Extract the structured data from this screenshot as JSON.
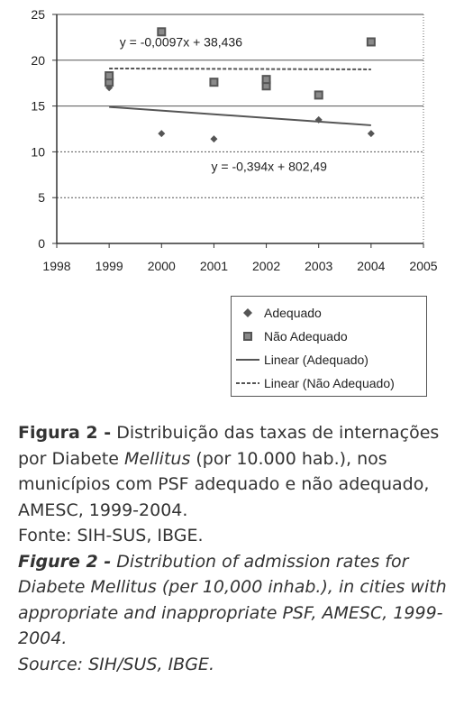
{
  "chart_data": {
    "type": "scatter",
    "xlim": [
      1998,
      2005
    ],
    "ylim": [
      0,
      25
    ],
    "x_ticks": [
      1998,
      1999,
      2000,
      2001,
      2002,
      2003,
      2004,
      2005
    ],
    "y_ticks": [
      0,
      5,
      10,
      15,
      20,
      25
    ],
    "gridlines": {
      "y": [
        5,
        10,
        15,
        20
      ],
      "style": "dotted"
    },
    "series": [
      {
        "name": "Adequado",
        "kind": "points",
        "marker": "diamond",
        "x": [
          1999,
          1999,
          2000,
          2001,
          2002,
          2002,
          2003,
          2004
        ],
        "y": [
          17,
          17.8,
          12,
          11.4,
          17.3,
          17.8,
          13.5,
          12
        ]
      },
      {
        "name": "Não Adequado",
        "kind": "points",
        "marker": "square",
        "x": [
          1999,
          1999,
          2000,
          2001,
          2002,
          2002,
          2003,
          2004
        ],
        "y": [
          17.6,
          18.3,
          23.1,
          17.6,
          17.2,
          17.9,
          16.2,
          22
        ]
      },
      {
        "name": "Linear (Adequado)",
        "kind": "trendline",
        "style": "solid",
        "x": [
          1999,
          2004
        ],
        "y": [
          14.9,
          12.9
        ]
      },
      {
        "name": "Linear (Não Adequado)",
        "kind": "trendline",
        "style": "dashed",
        "x": [
          1999,
          2004
        ],
        "y": [
          19.1,
          19.0
        ]
      }
    ],
    "annotations": [
      {
        "text": "y = -0,0097x + 38,436",
        "x": 1999.2,
        "y": 21.5
      },
      {
        "text": "y = -0,394x + 802,49",
        "x": 2000.95,
        "y": 7.9
      }
    ],
    "legend_position": "bottom-right",
    "colors": {
      "points": "#555555",
      "axis": "#333333",
      "grid": "#666666"
    }
  },
  "caption": {
    "pt_label": "Figura 2 -",
    "pt_text_1": " Distribuição das taxas de internações por Diabete ",
    "pt_italic": "Mellitus",
    "pt_text_2": " (por 10.000 hab.), nos municípios com PSF adequado e não adequado, AMESC, 1999-2004.",
    "pt_source": "Fonte: SIH-SUS, IBGE.",
    "en_label": "Figure 2 -",
    "en_text": " Distribution of admission rates for Diabete Mellitus (per 10,000 inhab.), in cities with appropriate and inappropriate PSF, AMESC, 1999-2004.",
    "en_source": "Source: SIH/SUS, IBGE."
  }
}
